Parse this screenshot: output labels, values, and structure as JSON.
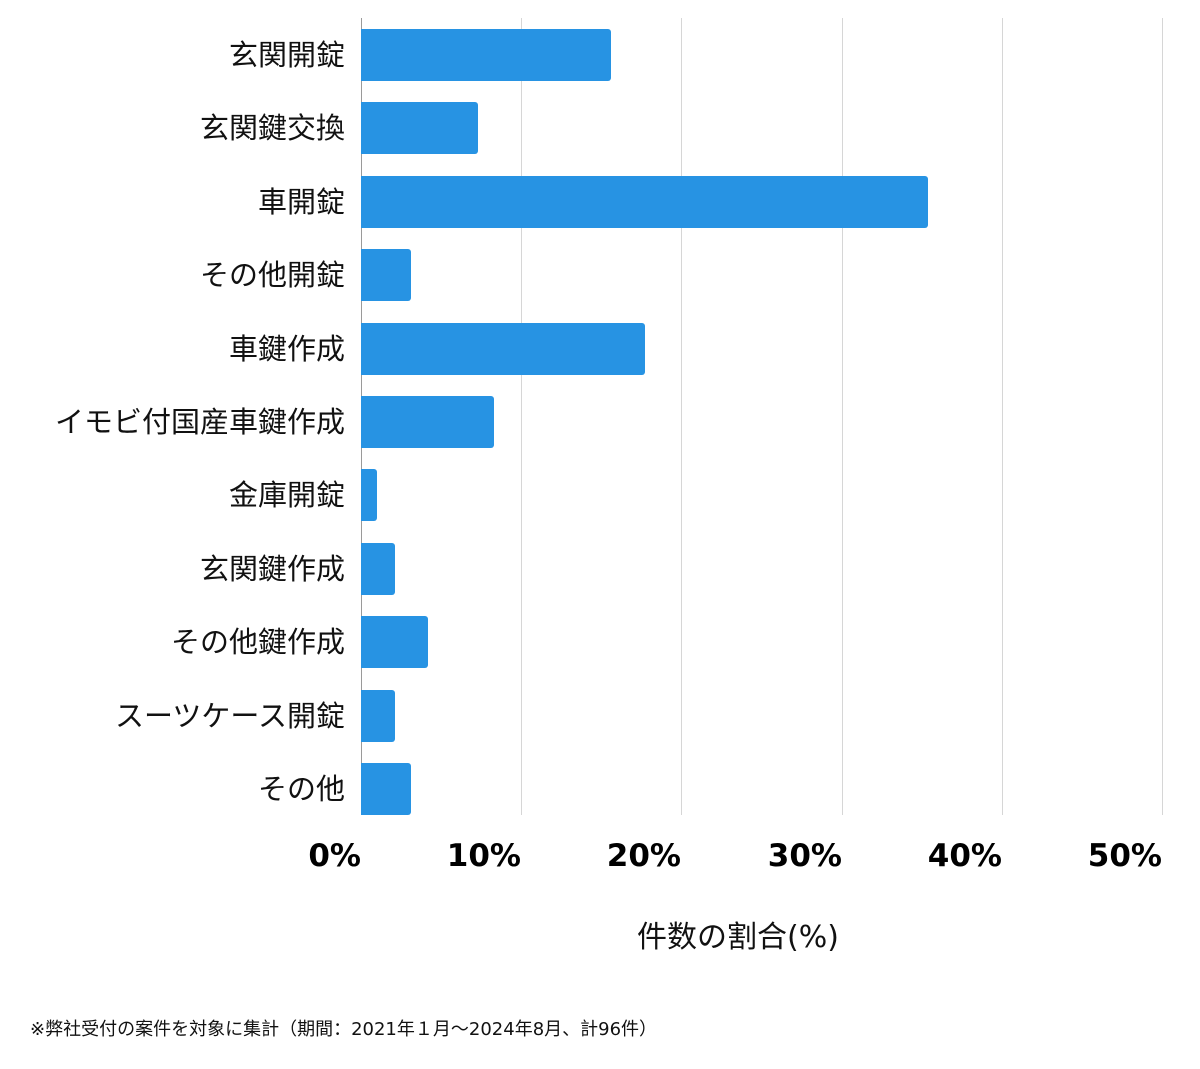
{
  "chart_data": {
    "type": "bar",
    "orientation": "horizontal",
    "title": "",
    "categories": [
      "玄関開錠",
      "玄関鍵交換",
      "車開錠",
      "その他開錠",
      "車鍵作成",
      "イモビ付国産車鍵作成",
      "金庫開錠",
      "玄関鍵作成",
      "その他鍵作成",
      "スーツケース開錠",
      "その他"
    ],
    "values": [
      15.6,
      7.3,
      35.4,
      3.1,
      17.7,
      8.3,
      1.0,
      2.1,
      4.2,
      2.1,
      3.1
    ],
    "xlabel": "件数の割合(%)",
    "ylabel": "",
    "xlim": [
      0,
      50
    ],
    "xticks": [
      "0%",
      "10%",
      "20%",
      "30%",
      "40%",
      "50%"
    ],
    "grid": true,
    "legend": null,
    "bar_color": "#2793e3",
    "annotation": "※弊社受付の案件を対象に集計（期間：2021年１月〜2024年8月、計96件）"
  },
  "axis": {
    "xlabel": "件数の割合(%)",
    "ticks": [
      "0%",
      "10%",
      "20%",
      "30%",
      "40%",
      "50%"
    ]
  },
  "footnote": "※弊社受付の案件を対象に集計（期間：2021年１月〜2024年8月、計96件）"
}
